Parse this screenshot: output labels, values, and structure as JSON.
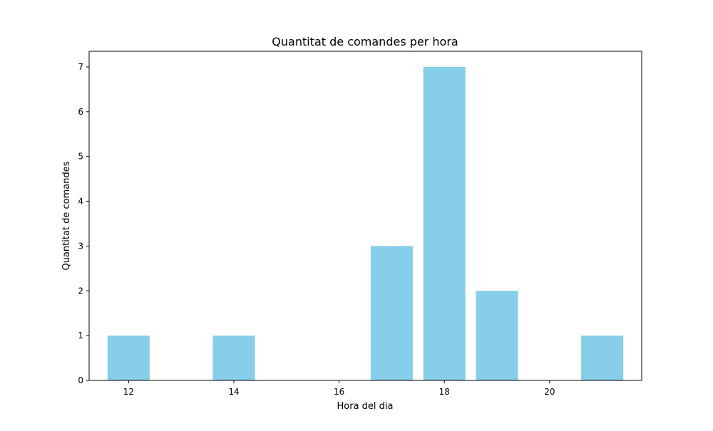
{
  "chart_data": {
    "type": "bar",
    "title": "Quantitat de comandes per hora",
    "xlabel": "Hora del dia",
    "ylabel": "Quantitat de comandes",
    "x": [
      12,
      14,
      17,
      18,
      19,
      21
    ],
    "values": [
      1,
      1,
      3,
      7,
      2,
      1
    ],
    "xlim": [
      11.25,
      21.75
    ],
    "ylim": [
      0,
      7.35
    ],
    "xticks": [
      12,
      14,
      16,
      18,
      20
    ],
    "yticks": [
      0,
      1,
      2,
      3,
      4,
      5,
      6,
      7
    ],
    "bar_color": "#87ceeb",
    "grid": false,
    "legend": "none"
  }
}
